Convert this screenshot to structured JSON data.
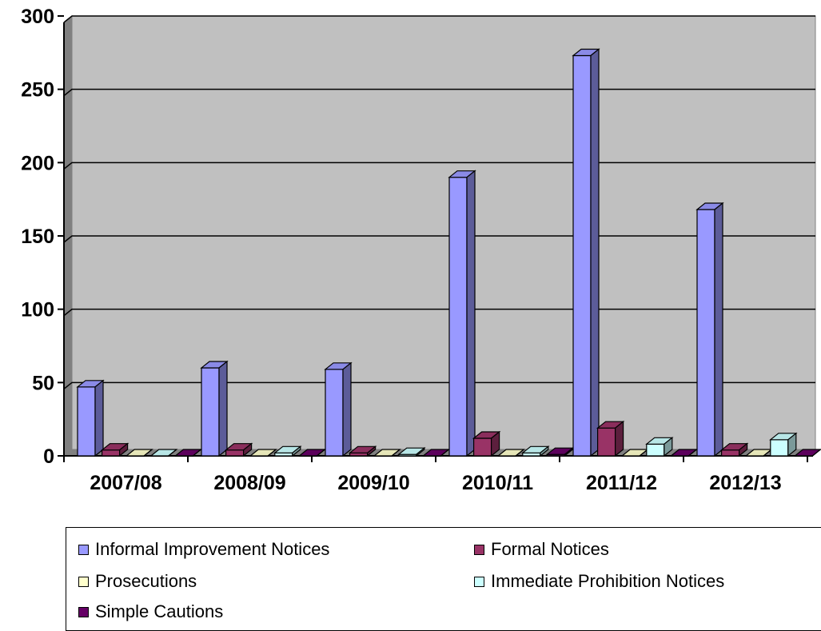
{
  "chart_data": {
    "type": "bar",
    "categories": [
      "2007/08",
      "2008/09",
      "2009/10",
      "2010/11",
      "2011/12",
      "2012/13"
    ],
    "series": [
      {
        "name": "Informal Improvement Notices",
        "values": [
          47,
          60,
          59,
          190,
          273,
          168
        ],
        "color": "#9999ff"
      },
      {
        "name": "Formal Notices",
        "values": [
          4,
          4,
          2,
          12,
          19,
          4
        ],
        "color": "#993366"
      },
      {
        "name": "Prosecutions",
        "values": [
          0,
          0,
          0,
          0,
          0,
          0
        ],
        "color": "#ffffcc"
      },
      {
        "name": "Immediate Prohibition Notices",
        "values": [
          0,
          2,
          1,
          2,
          8,
          11
        ],
        "color": "#ccffff"
      },
      {
        "name": "Simple Cautions",
        "values": [
          0,
          0,
          0,
          1,
          0,
          0
        ],
        "color": "#660066"
      }
    ],
    "ylim": [
      0,
      300
    ],
    "yticks": [
      "0",
      "50",
      "100",
      "150",
      "200",
      "250",
      "300"
    ],
    "grid": true,
    "plot_background": "#c0c0c0",
    "legend_position": "bottom",
    "three_d": true
  }
}
